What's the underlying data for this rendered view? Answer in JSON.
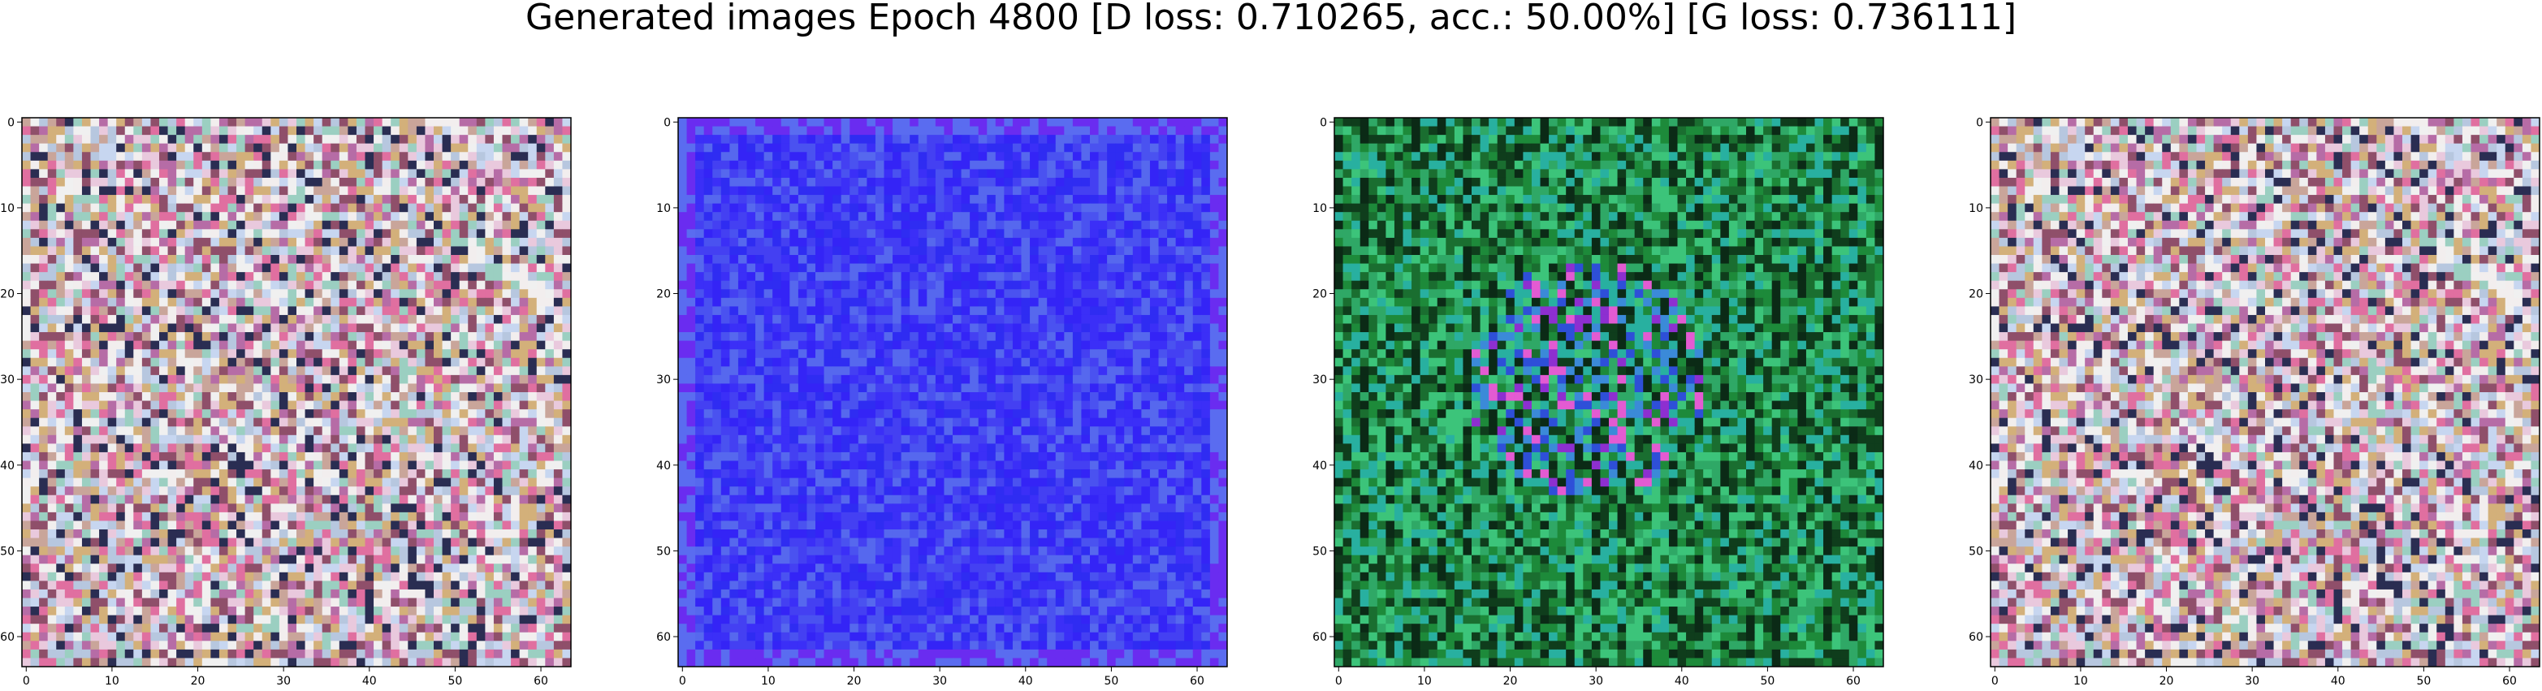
{
  "figure": {
    "title": "Generated images Epoch 4800 [D loss: 0.710265, acc.: 50.00%] [G loss: 0.736111]"
  },
  "panels": [
    {
      "id": "sample-1",
      "style": "pastel-noise",
      "base_color": "#d8c8cf",
      "palette": [
        "#f2eeee",
        "#e9c9dd",
        "#c9a59a",
        "#b7c7df",
        "#f0f0f0",
        "#8f4f6a",
        "#e06fa0",
        "#9bcfc1",
        "#d3b07a",
        "#2a2d52",
        "#c7d6f0",
        "#b66ca6"
      ],
      "x_ticks": [
        "0",
        "10",
        "20",
        "30",
        "40",
        "50",
        "60"
      ],
      "y_ticks": [
        "0",
        "10",
        "20",
        "30",
        "40",
        "50",
        "60"
      ]
    },
    {
      "id": "sample-2",
      "style": "blue-field",
      "base_color": "#3a2ff5",
      "palette": [
        "#3b2ff7",
        "#4440f2",
        "#3424f6",
        "#4a52f0",
        "#2f2cf2",
        "#5668ee"
      ],
      "x_ticks": [
        "0",
        "10",
        "20",
        "30",
        "40",
        "50",
        "60"
      ],
      "y_ticks": [
        "0",
        "10",
        "20",
        "30",
        "40",
        "50",
        "60"
      ]
    },
    {
      "id": "sample-3",
      "style": "green-noise",
      "base_color": "#1f8a3c",
      "palette": [
        "#1d8a3a",
        "#2fa866",
        "#1a6e30",
        "#0b2a16",
        "#2e4fd8",
        "#3b8ad8",
        "#8d2fd0",
        "#e35bd2",
        "#28b0a0",
        "#0f3d1c",
        "#3cc47a",
        "#143f8e"
      ],
      "x_ticks": [
        "0",
        "10",
        "20",
        "30",
        "40",
        "50",
        "60"
      ],
      "y_ticks": [
        "0",
        "10",
        "20",
        "30",
        "40",
        "50",
        "60"
      ]
    },
    {
      "id": "sample-4",
      "style": "pastel-noise",
      "base_color": "#d8c8cf",
      "palette": [
        "#f2eeee",
        "#e9c9dd",
        "#c9a59a",
        "#b7c7df",
        "#f0f0f0",
        "#8f4f6a",
        "#e06fa0",
        "#9bcfc1",
        "#d3b07a",
        "#2a2d52",
        "#c7d6f0",
        "#b66ca6"
      ],
      "x_ticks": [
        "0",
        "10",
        "20",
        "30",
        "40",
        "50",
        "60"
      ],
      "y_ticks": [
        "0",
        "10",
        "20",
        "30",
        "40",
        "50",
        "60"
      ]
    }
  ]
}
